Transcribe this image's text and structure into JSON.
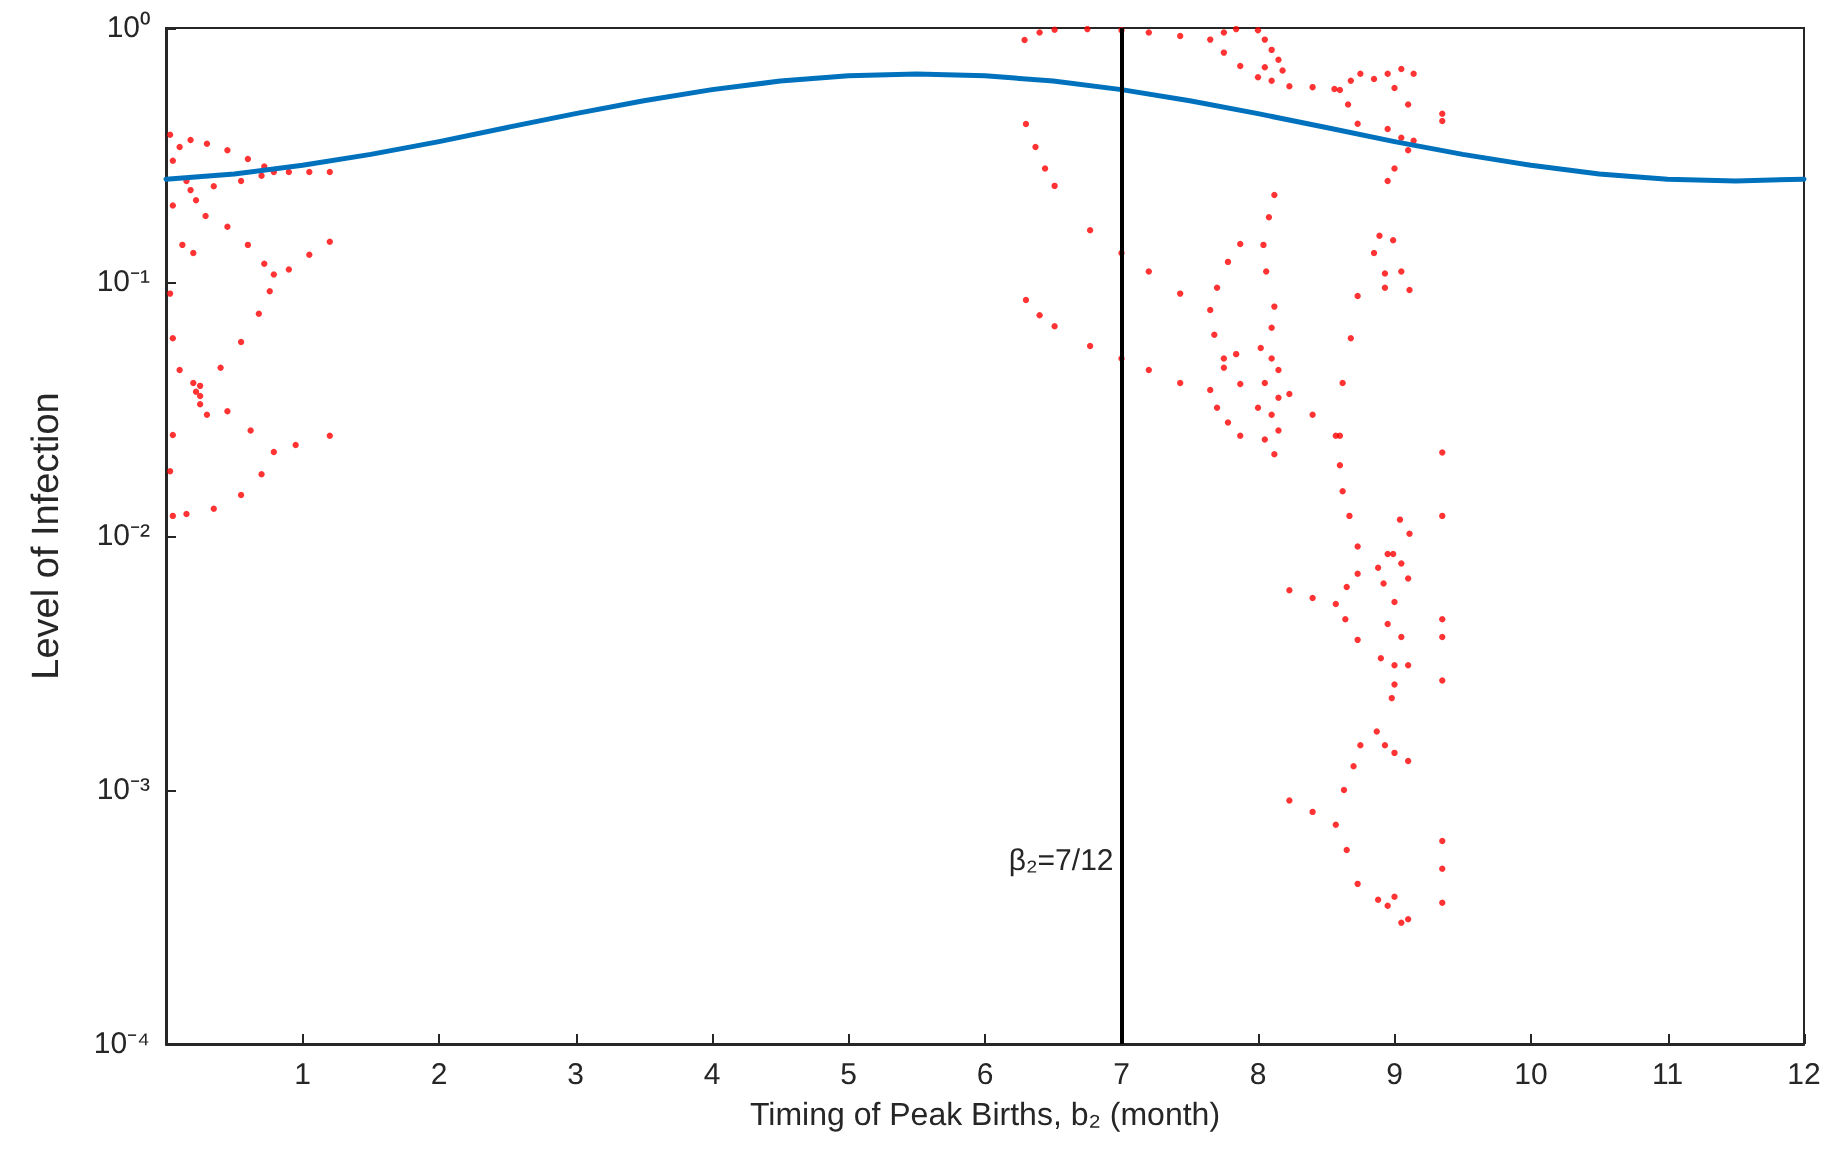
{
  "chart_data": {
    "type": "scatter",
    "xlabel": "Timing of Peak Births, b₂ (month)",
    "ylabel": "Level of Infection",
    "xlim": [
      0,
      12
    ],
    "xticks": [
      1,
      2,
      3,
      4,
      5,
      6,
      7,
      8,
      9,
      10,
      11,
      12
    ],
    "ylim": [
      0.0001,
      1
    ],
    "log": "y",
    "yticks": [
      {
        "value": 0.0001,
        "label": "10⁻⁴"
      },
      {
        "value": 0.001,
        "label": "10⁻³"
      },
      {
        "value": 0.01,
        "label": "10⁻²"
      },
      {
        "value": 0.1,
        "label": "10⁻¹"
      },
      {
        "value": 1,
        "label": "10⁰"
      }
    ],
    "grid": false,
    "ref_lines": [
      {
        "axis": "x",
        "value": 7,
        "label": "β₂=7/12",
        "color": "#000000"
      }
    ],
    "series": [
      {
        "color": "#ff0000",
        "marker": "circle",
        "x": [
          0.18,
          0.3,
          0.45,
          0.6,
          0.72,
          0.79,
          0.9,
          1.05,
          1.2,
          0.18,
          0.35,
          0.55,
          0.7,
          0.29,
          0.45,
          0.6,
          0.72,
          0.79,
          0.25,
          0.4,
          0.55,
          0.68,
          0.76,
          0.9,
          1.05,
          1.2,
          0.25,
          0.45,
          0.62,
          0.79,
          0.15,
          0.35,
          0.55,
          0.7,
          0.95,
          1.2,
          0.03,
          0.05,
          0.1,
          0.15,
          0.22,
          0.05,
          0.12,
          0.2,
          0.03,
          0.05,
          0.1,
          0.2,
          0.25,
          0.05,
          0.03,
          0.05,
          0.22,
          0.3,
          6.29,
          6.4,
          6.51,
          6.75,
          7.0,
          7.2,
          7.43,
          7.65,
          7.75,
          7.84,
          7.75,
          7.87,
          8.0,
          8.05,
          8.1,
          8.15,
          8.05,
          8.0,
          8.1,
          8.18,
          8.23,
          8.4,
          8.56,
          8.6,
          8.68,
          8.75,
          8.66,
          8.73,
          8.85,
          8.95,
          9.05,
          9.14,
          9.0,
          9.1,
          8.95,
          9.05,
          9.1,
          9.0,
          8.95,
          9.14,
          9.35,
          9.35,
          6.3,
          6.37,
          6.44,
          6.51,
          6.77,
          7.0,
          7.2,
          7.43,
          7.65,
          7.7,
          7.78,
          7.87,
          7.68,
          7.75,
          7.87,
          6.3,
          6.4,
          6.51,
          6.77,
          7.0,
          7.2,
          7.43,
          7.65,
          7.75,
          7.84,
          7.7,
          7.78,
          7.87,
          8.12,
          8.08,
          8.04,
          8.06,
          8.12,
          8.1,
          8.02,
          8.1,
          8.15,
          8.05,
          8.15,
          8.0,
          8.1,
          8.15,
          8.05,
          8.12,
          8.89,
          8.99,
          8.85,
          8.93,
          9.05,
          9.11,
          8.93,
          8.23,
          8.4,
          8.57,
          8.73,
          8.68,
          8.62,
          8.6,
          8.6,
          8.62,
          8.67,
          8.73,
          9.04,
          9.11,
          8.99,
          8.23,
          8.4,
          8.57,
          8.65,
          8.73,
          8.64,
          8.73,
          8.88,
          8.95,
          9.05,
          8.92,
          9.1,
          9.0,
          8.95,
          9.05,
          8.9,
          9.0,
          9.1,
          9.0,
          8.98,
          8.23,
          8.4,
          8.57,
          8.63,
          8.7,
          8.75,
          8.65,
          8.73,
          8.87,
          8.93,
          9.0,
          9.1,
          8.88,
          8.95,
          9.0,
          9.1,
          9.05,
          9.35,
          9.35,
          9.35,
          9.35,
          9.35,
          9.35,
          9.35,
          9.35
        ],
        "values": [
          0.362,
          0.35,
          0.33,
          0.305,
          0.285,
          0.271,
          0.271,
          0.271,
          0.271,
          0.23,
          0.238,
          0.25,
          0.262,
          0.182,
          0.165,
          0.14,
          0.118,
          0.107,
          0.039,
          0.046,
          0.058,
          0.075,
          0.092,
          0.112,
          0.128,
          0.144,
          0.0356,
          0.031,
          0.026,
          0.0214,
          0.0122,
          0.0128,
          0.0145,
          0.0175,
          0.0228,
          0.0248,
          0.38,
          0.3,
          0.34,
          0.25,
          0.21,
          0.2,
          0.14,
          0.13,
          0.09,
          0.06,
          0.045,
          0.04,
          0.033,
          0.025,
          0.018,
          0.012,
          0.037,
          0.03,
          0.897,
          0.96,
          0.985,
          0.99,
          0.98,
          0.96,
          0.93,
          0.9,
          0.96,
          0.99,
          0.8,
          0.709,
          0.98,
          0.9,
          0.82,
          0.75,
          0.7,
          0.64,
          0.62,
          0.68,
          0.59,
          0.585,
          0.575,
          0.57,
          0.62,
          0.66,
          0.5,
          0.42,
          0.63,
          0.66,
          0.69,
          0.66,
          0.58,
          0.5,
          0.4,
          0.37,
          0.33,
          0.28,
          0.25,
          0.36,
          0.46,
          0.43,
          0.419,
          0.34,
          0.28,
          0.239,
          0.16,
          0.13,
          0.11,
          0.09,
          0.0776,
          0.095,
          0.12,
          0.141,
          0.062,
          0.05,
          0.0397,
          0.085,
          0.074,
          0.067,
          0.056,
          0.05,
          0.045,
          0.04,
          0.0376,
          0.046,
          0.052,
          0.032,
          0.028,
          0.0248,
          0.22,
          0.18,
          0.14,
          0.11,
          0.08,
          0.066,
          0.055,
          0.05,
          0.045,
          0.04,
          0.035,
          0.032,
          0.03,
          0.026,
          0.024,
          0.021,
          0.152,
          0.146,
          0.13,
          0.108,
          0.11,
          0.093,
          0.095,
          0.0362,
          0.03,
          0.0248,
          0.088,
          0.06,
          0.04,
          0.0248,
          0.019,
          0.015,
          0.012,
          0.0091,
          0.0116,
          0.0102,
          0.0085,
          0.00612,
          0.0057,
          0.0054,
          0.0063,
          0.0071,
          0.0047,
          0.0039,
          0.0075,
          0.0085,
          0.0078,
          0.0065,
          0.0068,
          0.0055,
          0.0045,
          0.004,
          0.0033,
          0.0031,
          0.0031,
          0.0026,
          0.0023,
          0.00091,
          0.00082,
          0.00073,
          0.001,
          0.00124,
          0.0015,
          0.00058,
          0.000427,
          0.0017,
          0.0015,
          0.0014,
          0.0013,
          0.00037,
          0.00035,
          0.00038,
          0.00031,
          0.0003,
          0.0213,
          0.012,
          0.0047,
          0.004,
          0.0027,
          0.00063,
          0.00049,
          0.00036
        ]
      },
      {
        "type": "line",
        "color": "#0072bd",
        "marker": "none",
        "line_style": "solid",
        "x": [
          0,
          0.5,
          1,
          1.5,
          2,
          2.5,
          3,
          3.5,
          4,
          4.5,
          5,
          5.5,
          6,
          6.5,
          7,
          7.5,
          8,
          8.5,
          9,
          9.5,
          10,
          10.5,
          11,
          11.5,
          12
        ],
        "values": [
          0.254,
          0.266,
          0.288,
          0.318,
          0.357,
          0.406,
          0.46,
          0.517,
          0.572,
          0.618,
          0.649,
          0.659,
          0.649,
          0.618,
          0.572,
          0.517,
          0.46,
          0.406,
          0.357,
          0.318,
          0.288,
          0.266,
          0.254,
          0.25,
          0.254
        ]
      }
    ]
  }
}
